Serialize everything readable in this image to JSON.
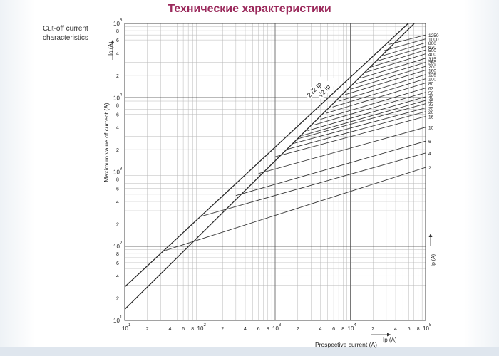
{
  "title": "Технические характеристики",
  "caption": [
    "Cut-off current",
    "characteristics"
  ],
  "chart_data": {
    "type": "line",
    "scale": "log-log",
    "x_axis": {
      "label": "Prospective current (A)",
      "symbol": "Ip",
      "symbol_unit": "(A)",
      "range": [
        10,
        100000
      ],
      "major_labels": [
        {
          "base": "10",
          "exp": "1"
        },
        {
          "base": "10",
          "exp": "2"
        },
        {
          "base": "10",
          "exp": "3"
        },
        {
          "base": "10",
          "exp": "4"
        },
        {
          "base": "10",
          "exp": "5"
        }
      ],
      "minor_labels": [
        "2",
        "4",
        "6",
        "8"
      ]
    },
    "y_axis": {
      "label": "Maximum value of current (A)",
      "symbol": "Io",
      "symbol_unit": "(A)",
      "range": [
        10,
        100000
      ],
      "major_labels": [
        {
          "base": "10",
          "exp": "1"
        },
        {
          "base": "10",
          "exp": "2"
        },
        {
          "base": "10",
          "exp": "3"
        },
        {
          "base": "10",
          "exp": "4"
        },
        {
          "base": "10",
          "exp": "5"
        }
      ],
      "minor_labels": [
        "2",
        "4",
        "6",
        "8"
      ]
    },
    "grid": true,
    "reference_lines": [
      {
        "label": "2√2 Ip",
        "points": [
          [
            10,
            28.3
          ],
          [
            58800,
            100000
          ]
        ]
      },
      {
        "label": "√2 Ip",
        "points": [
          [
            10,
            14.1
          ],
          [
            70700,
            100000
          ]
        ]
      }
    ],
    "fuse_ratings": [
      {
        "rating": "1250",
        "points": [
          [
            32000,
            52000
          ],
          [
            100000,
            70000
          ]
        ]
      },
      {
        "rating": "1000",
        "points": [
          [
            28000,
            43000
          ],
          [
            100000,
            62000
          ]
        ]
      },
      {
        "rating": "800",
        "points": [
          [
            25000,
            36000
          ],
          [
            100000,
            55000
          ]
        ]
      },
      {
        "rating": "630",
        "points": [
          [
            22000,
            31000
          ],
          [
            100000,
            49000
          ]
        ]
      },
      {
        "rating": "500",
        "points": [
          [
            19000,
            26000
          ],
          [
            100000,
            44000
          ]
        ]
      },
      {
        "rating": "400",
        "points": [
          [
            16000,
            22000
          ],
          [
            100000,
            39000
          ]
        ]
      },
      {
        "rating": "315",
        "points": [
          [
            14000,
            18500
          ],
          [
            100000,
            34000
          ]
        ]
      },
      {
        "rating": "250",
        "points": [
          [
            12000,
            15500
          ],
          [
            100000,
            30000
          ]
        ]
      },
      {
        "rating": "200",
        "points": [
          [
            10000,
            13000
          ],
          [
            100000,
            26500
          ]
        ]
      },
      {
        "rating": "160",
        "points": [
          [
            8500,
            11000
          ],
          [
            100000,
            23500
          ]
        ]
      },
      {
        "rating": "125",
        "points": [
          [
            7000,
            9000
          ],
          [
            100000,
            20500
          ]
        ]
      },
      {
        "rating": "100",
        "points": [
          [
            5800,
            7500
          ],
          [
            100000,
            18000
          ]
        ]
      },
      {
        "rating": "80",
        "points": [
          [
            4800,
            6200
          ],
          [
            100000,
            15800
          ]
        ]
      },
      {
        "rating": "63",
        "points": [
          [
            4000,
            5100
          ],
          [
            100000,
            13500
          ]
        ]
      },
      {
        "rating": "50",
        "points": [
          [
            3300,
            4300
          ],
          [
            100000,
            11800
          ]
        ]
      },
      {
        "rating": "40",
        "points": [
          [
            2700,
            3600
          ],
          [
            100000,
            10300
          ]
        ]
      },
      {
        "rating": "35",
        "points": [
          [
            2300,
            3100
          ],
          [
            100000,
            9200
          ]
        ]
      },
      {
        "rating": "32",
        "points": [
          [
            2000,
            2800
          ],
          [
            100000,
            8300
          ]
        ]
      },
      {
        "rating": "25",
        "points": [
          [
            1700,
            2400
          ],
          [
            100000,
            7300
          ]
        ]
      },
      {
        "rating": "20",
        "points": [
          [
            1400,
            2000
          ],
          [
            100000,
            6500
          ]
        ]
      },
      {
        "rating": "16",
        "points": [
          [
            1000,
            1600
          ],
          [
            100000,
            5600
          ]
        ]
      },
      {
        "rating": "10",
        "points": [
          [
            600,
            950
          ],
          [
            100000,
            4000
          ]
        ]
      },
      {
        "rating": "6",
        "points": [
          [
            300,
            480
          ],
          [
            100000,
            2600
          ]
        ]
      },
      {
        "rating": "4",
        "points": [
          [
            100,
            250
          ],
          [
            100000,
            1800
          ]
        ]
      },
      {
        "rating": "2",
        "points": [
          [
            35,
            88
          ],
          [
            100000,
            1150
          ]
        ]
      }
    ]
  }
}
